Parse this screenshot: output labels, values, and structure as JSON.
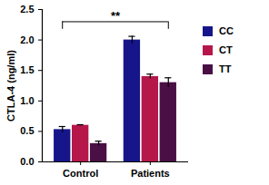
{
  "chart_data": {
    "type": "bar",
    "y_label": "CTLA-4 (ng/ml)",
    "categories": [
      "Control",
      "Patients"
    ],
    "series": [
      {
        "name": "CC",
        "color": "#16168a",
        "values": [
          0.53,
          2.0
        ],
        "errors": [
          0.05,
          0.06
        ]
      },
      {
        "name": "CT",
        "color": "#b5174b",
        "values": [
          0.6,
          1.4
        ],
        "errors": [
          0.01,
          0.04
        ]
      },
      {
        "name": "TT",
        "color": "#4a0f45",
        "values": [
          0.3,
          1.3
        ],
        "errors": [
          0.04,
          0.08
        ]
      }
    ],
    "ylim": [
      0,
      2.5
    ],
    "yticks": [
      {
        "value": 0,
        "label": "0.0"
      },
      0.5,
      {
        "value": 1,
        "label": "1.0"
      },
      1.5,
      {
        "value": 2,
        "label": "2.0"
      },
      2.5
    ],
    "grid": false,
    "legend": "right",
    "annotations": [
      {
        "text": "**",
        "y": 2.3,
        "from": "Control",
        "to": "Patients"
      }
    ]
  }
}
